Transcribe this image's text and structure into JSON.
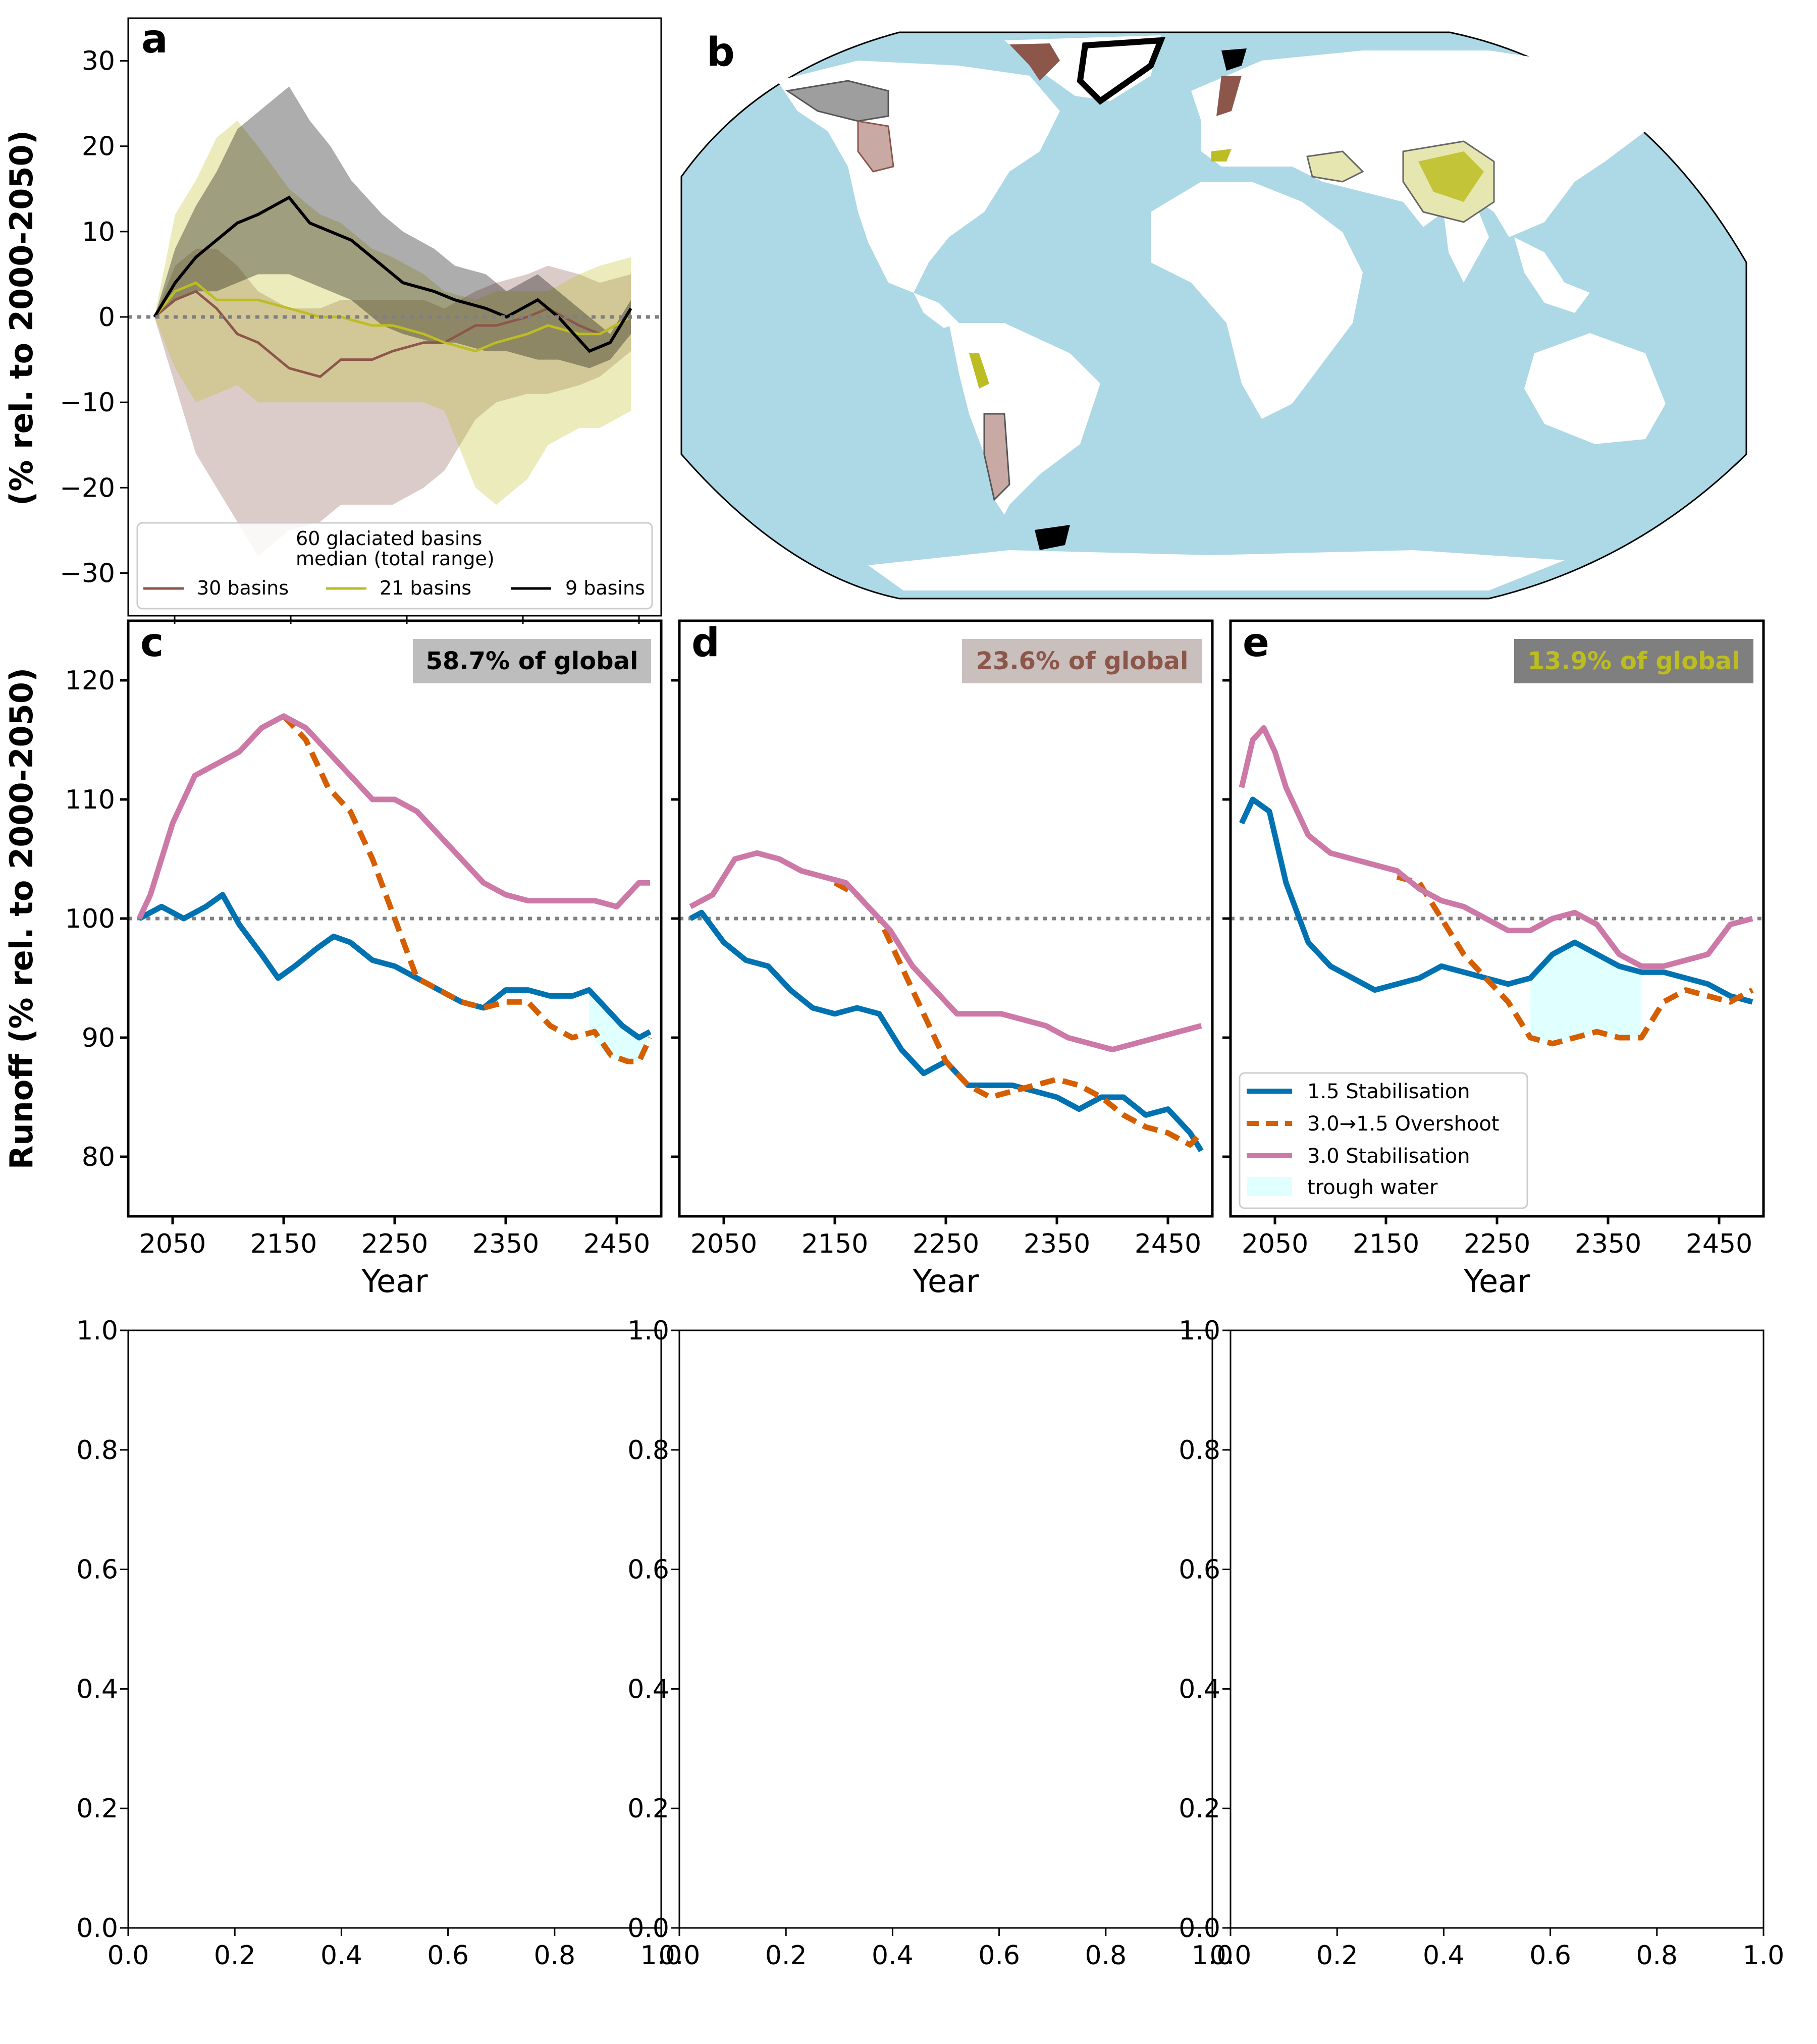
{
  "colors": {
    "brown": "#8c564b",
    "olive": "#bcbd22",
    "black": "#000000",
    "blue": "#0072b2",
    "orange": "#d55e00",
    "pink": "#cc79a7",
    "trough": "#e0ffff",
    "ocean": "#add8e6",
    "ref_line": "#808080"
  },
  "y_axis_label_left": "Runoff (% rel. to 2000-2050)",
  "y_axis_label_top": "(% rel. to 2000-2050)",
  "x_axis_label": "Year",
  "panels": {
    "a": {
      "letter": "a"
    },
    "b": {
      "letter": "b"
    },
    "c": {
      "letter": "c",
      "badge": "58.7% of global"
    },
    "d": {
      "letter": "d",
      "badge": "23.6% of global"
    },
    "e": {
      "letter": "e",
      "badge": "13.9% of global"
    }
  },
  "legend_a": {
    "title_line1": "60 glaciated basins",
    "title_line2": "median (total range)",
    "entries": [
      "30 basins",
      "21 basins",
      "9 basins"
    ]
  },
  "legend_e": {
    "entries": [
      "1.5 Stabilisation",
      "3.0→1.5 Overshoot",
      "3.0 Stabilisation",
      "trough water"
    ]
  },
  "chart_data": [
    {
      "id": "a",
      "type": "line",
      "ylim": [
        -35,
        35
      ],
      "yticks": [
        "30",
        "20",
        "10",
        "0",
        "−10",
        "−20",
        "−30"
      ],
      "reference_line": 0,
      "series": [
        {
          "name": "30 basins",
          "color": "#8c564b",
          "x": [
            2020,
            2040,
            2060,
            2080,
            2100,
            2120,
            2150,
            2180,
            2200,
            2230,
            2250,
            2280,
            2300,
            2330,
            2350,
            2380,
            2400,
            2430,
            2450,
            2480
          ],
          "median": [
            0,
            2,
            3,
            1,
            -2,
            -3,
            -6,
            -7,
            -5,
            -5,
            -4,
            -3,
            -3,
            -1,
            -1,
            0,
            1,
            -1,
            -2,
            0
          ],
          "low": [
            0,
            -8,
            -16,
            -20,
            -24,
            -28,
            -25,
            -24,
            -22,
            -22,
            -22,
            -20,
            -18,
            -12,
            -10,
            -9,
            -9,
            -8,
            -7,
            -4
          ],
          "high": [
            0,
            6,
            8,
            8,
            6,
            3,
            1,
            1,
            2,
            2,
            2,
            2,
            1,
            3,
            4,
            5,
            6,
            5,
            4,
            5
          ]
        },
        {
          "name": "21 basins",
          "color": "#bcbd22",
          "x": [
            2020,
            2040,
            2060,
            2080,
            2100,
            2120,
            2150,
            2180,
            2200,
            2230,
            2250,
            2280,
            2300,
            2330,
            2350,
            2380,
            2400,
            2430,
            2450,
            2480
          ],
          "median": [
            0,
            3,
            4,
            2,
            2,
            2,
            1,
            0,
            0,
            -1,
            -1,
            -2,
            -3,
            -4,
            -3,
            -2,
            -1,
            -2,
            -2,
            0
          ],
          "low": [
            0,
            -6,
            -10,
            -9,
            -8,
            -10,
            -10,
            -10,
            -10,
            -10,
            -10,
            -10,
            -11,
            -20,
            -22,
            -19,
            -15,
            -13,
            -13,
            -11
          ],
          "high": [
            0,
            12,
            16,
            21,
            23,
            20,
            15,
            12,
            11,
            8,
            7,
            5,
            3,
            2,
            3,
            3,
            3,
            5,
            6,
            7
          ]
        },
        {
          "name": "9 basins",
          "color": "#000000",
          "x": [
            2020,
            2040,
            2060,
            2080,
            2100,
            2120,
            2150,
            2170,
            2190,
            2210,
            2240,
            2260,
            2290,
            2310,
            2340,
            2360,
            2390,
            2410,
            2440,
            2460,
            2480
          ],
          "median": [
            0,
            4,
            7,
            9,
            11,
            12,
            14,
            11,
            10,
            9,
            6,
            4,
            3,
            2,
            1,
            0,
            2,
            0,
            -4,
            -3,
            1
          ],
          "low": [
            0,
            2,
            3,
            3,
            4,
            5,
            5,
            4,
            3,
            2,
            -1,
            -2,
            -3,
            -3,
            -4,
            -4,
            -5,
            -5,
            -6,
            -5,
            -2
          ],
          "high": [
            0,
            8,
            13,
            17,
            22,
            24,
            27,
            23,
            20,
            16,
            12,
            10,
            8,
            6,
            5,
            3,
            5,
            3,
            0,
            -2,
            2
          ]
        }
      ]
    },
    {
      "id": "c",
      "type": "line",
      "xlim": [
        2010,
        2490
      ],
      "ylim": [
        75,
        125
      ],
      "xticks": [
        2050,
        2150,
        2250,
        2350,
        2450
      ],
      "yticks": [
        120,
        110,
        100,
        90,
        80
      ],
      "reference_line": 100,
      "series": [
        {
          "name": "1.5 Stabilisation",
          "color": "#0072b2",
          "style": "solid",
          "x": [
            2020,
            2040,
            2060,
            2080,
            2095,
            2110,
            2130,
            2145,
            2160,
            2180,
            2195,
            2210,
            2230,
            2250,
            2270,
            2290,
            2310,
            2330,
            2350,
            2370,
            2390,
            2410,
            2425,
            2440,
            2455,
            2470,
            2480
          ],
          "y": [
            100,
            101,
            100,
            101,
            102,
            99.5,
            97,
            95,
            96,
            97.5,
            98.5,
            98,
            96.5,
            96,
            95,
            94,
            93,
            92.5,
            94,
            94,
            93.5,
            93.5,
            94,
            92.5,
            91,
            90,
            90.5
          ]
        },
        {
          "name": "3.0→1.5 Overshoot",
          "color": "#d55e00",
          "style": "dashed",
          "x": [
            2150,
            2170,
            2190,
            2210,
            2230,
            2250,
            2270,
            2290,
            2310,
            2330,
            2350,
            2370,
            2390,
            2410,
            2430,
            2445,
            2460,
            2470,
            2480
          ],
          "y": [
            117,
            115,
            111,
            109,
            105,
            100,
            95,
            94,
            93,
            92.5,
            93,
            93,
            91,
            90,
            90.5,
            88.5,
            88,
            88,
            90
          ]
        },
        {
          "name": "3.0 Stabilisation",
          "color": "#cc79a7",
          "style": "solid",
          "x": [
            2020,
            2030,
            2050,
            2070,
            2090,
            2110,
            2130,
            2150,
            2170,
            2190,
            2210,
            2230,
            2250,
            2270,
            2290,
            2310,
            2330,
            2350,
            2370,
            2390,
            2410,
            2430,
            2450,
            2470,
            2480
          ],
          "y": [
            100,
            102,
            108,
            112,
            113,
            114,
            116,
            117,
            116,
            114,
            112,
            110,
            110,
            109,
            107,
            105,
            103,
            102,
            101.5,
            101.5,
            101.5,
            101.5,
            101,
            103,
            103
          ]
        }
      ],
      "trough": {
        "x": [
          2425,
          2440,
          2455,
          2470,
          2480
        ],
        "low": [
          90.5,
          88.5,
          88,
          88,
          90
        ],
        "high": [
          94,
          92.5,
          91,
          90,
          90.5
        ]
      }
    },
    {
      "id": "d",
      "type": "line",
      "xlim": [
        2010,
        2490
      ],
      "ylim": [
        75,
        125
      ],
      "xticks": [
        2050,
        2150,
        2250,
        2350,
        2450
      ],
      "yticks": [
        120,
        110,
        100,
        90,
        80
      ],
      "reference_line": 100,
      "series": [
        {
          "name": "1.5 Stabilisation",
          "color": "#0072b2",
          "style": "solid",
          "x": [
            2020,
            2030,
            2050,
            2070,
            2090,
            2110,
            2130,
            2150,
            2170,
            2190,
            2210,
            2230,
            2250,
            2270,
            2290,
            2310,
            2330,
            2350,
            2370,
            2390,
            2410,
            2430,
            2450,
            2470,
            2480
          ],
          "y": [
            100,
            100.5,
            98,
            96.5,
            96,
            94,
            92.5,
            92,
            92.5,
            92,
            89,
            87,
            88,
            86,
            86,
            86,
            85.5,
            85,
            84,
            85,
            85,
            83.5,
            84,
            82,
            80.5
          ]
        },
        {
          "name": "3.0→1.5 Overshoot",
          "color": "#d55e00",
          "style": "dashed",
          "x": [
            2150,
            2170,
            2190,
            2210,
            2230,
            2250,
            2270,
            2290,
            2310,
            2330,
            2350,
            2370,
            2390,
            2410,
            2430,
            2450,
            2470,
            2480
          ],
          "y": [
            103,
            102,
            100,
            96,
            92,
            88,
            86,
            85,
            85.5,
            86,
            86.5,
            86,
            85,
            83.5,
            82.5,
            82,
            81,
            82
          ]
        },
        {
          "name": "3.0 Stabilisation",
          "color": "#cc79a7",
          "style": "solid",
          "x": [
            2020,
            2040,
            2060,
            2080,
            2100,
            2120,
            2140,
            2160,
            2180,
            2200,
            2220,
            2240,
            2260,
            2280,
            2300,
            2320,
            2340,
            2360,
            2380,
            2400,
            2420,
            2440,
            2460,
            2480
          ],
          "y": [
            101,
            102,
            105,
            105.5,
            105,
            104,
            103.5,
            103,
            101,
            99,
            96,
            94,
            92,
            92,
            92,
            91.5,
            91,
            90,
            89.5,
            89,
            89.5,
            90,
            90.5,
            91
          ]
        }
      ]
    },
    {
      "id": "e",
      "type": "line",
      "xlim": [
        2010,
        2490
      ],
      "ylim": [
        75,
        125
      ],
      "xticks": [
        2050,
        2150,
        2250,
        2350,
        2450
      ],
      "yticks": [
        120,
        110,
        100,
        90,
        80
      ],
      "reference_line": 100,
      "series": [
        {
          "name": "1.5 Stabilisation",
          "color": "#0072b2",
          "style": "solid",
          "x": [
            2020,
            2030,
            2045,
            2060,
            2080,
            2100,
            2120,
            2140,
            2160,
            2180,
            2200,
            2220,
            2240,
            2260,
            2280,
            2300,
            2320,
            2340,
            2360,
            2380,
            2400,
            2420,
            2440,
            2460,
            2480
          ],
          "y": [
            108,
            110,
            109,
            103,
            98,
            96,
            95,
            94,
            94.5,
            95,
            96,
            95.5,
            95,
            94.5,
            95,
            97,
            98,
            97,
            96,
            95.5,
            95.5,
            95,
            94.5,
            93.5,
            93
          ]
        },
        {
          "name": "3.0→1.5 Overshoot",
          "color": "#d55e00",
          "style": "dashed",
          "x": [
            2160,
            2180,
            2200,
            2220,
            2240,
            2260,
            2280,
            2300,
            2320,
            2340,
            2360,
            2380,
            2400,
            2420,
            2440,
            2460,
            2480
          ],
          "y": [
            103.5,
            103,
            100,
            97,
            95,
            93,
            90,
            89.5,
            90,
            90.5,
            90,
            90,
            93,
            94,
            93.5,
            93,
            94
          ]
        },
        {
          "name": "3.0 Stabilisation",
          "color": "#cc79a7",
          "style": "solid",
          "x": [
            2020,
            2030,
            2040,
            2050,
            2060,
            2080,
            2100,
            2120,
            2140,
            2160,
            2180,
            2200,
            2220,
            2240,
            2260,
            2280,
            2300,
            2320,
            2340,
            2360,
            2380,
            2400,
            2420,
            2440,
            2460,
            2480
          ],
          "y": [
            111,
            115,
            116,
            114,
            111,
            107,
            105.5,
            105,
            104.5,
            104,
            102.5,
            101.5,
            101,
            100,
            99,
            99,
            100,
            100.5,
            99.5,
            97,
            96,
            96,
            96.5,
            97,
            99.5,
            100
          ]
        }
      ],
      "trough": {
        "x": [
          2280,
          2300,
          2320,
          2340,
          2360,
          2380
        ],
        "low": [
          90,
          89.5,
          90,
          90.5,
          90,
          90
        ],
        "high": [
          95,
          97,
          98,
          97,
          96,
          95.5
        ]
      }
    },
    {
      "id": "empty",
      "type": "line",
      "xlim": [
        0,
        1
      ],
      "ylim": [
        0,
        1
      ],
      "xticks": [
        "0.0",
        "0.2",
        "0.4",
        "0.6",
        "0.8",
        "1.0"
      ],
      "yticks": [
        "1.0",
        "0.8",
        "0.6",
        "0.4",
        "0.2",
        "0.0"
      ]
    }
  ]
}
